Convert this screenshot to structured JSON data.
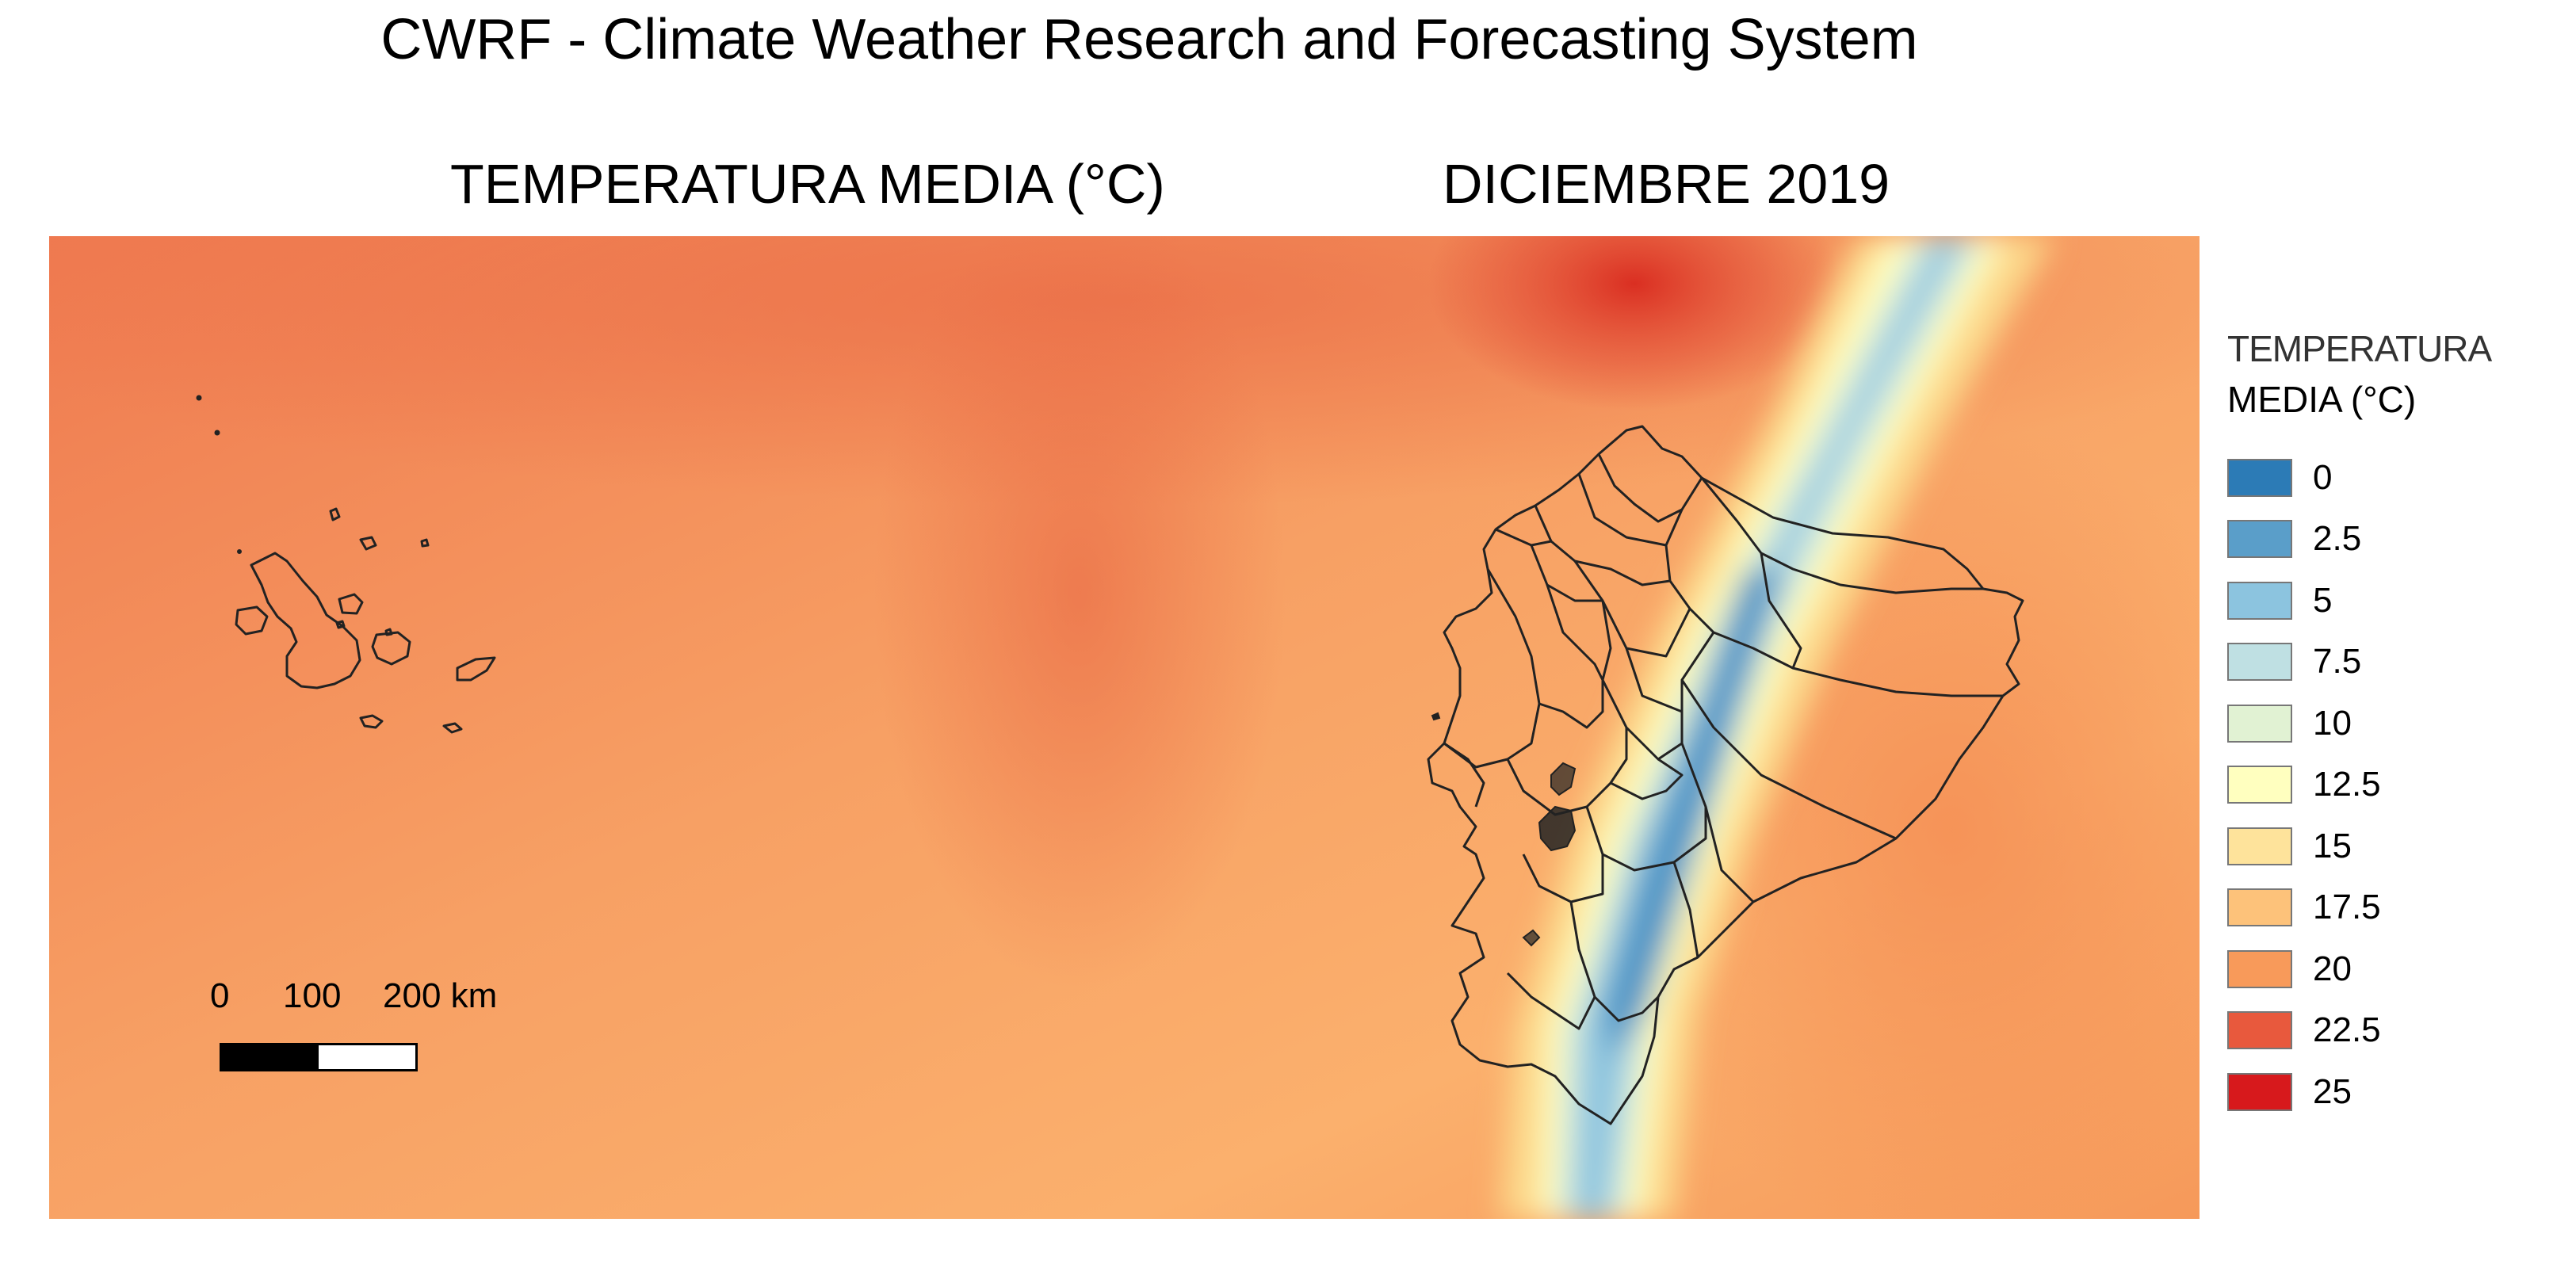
{
  "header": {
    "main_title": "CWRF - Climate Weather Research and Forecasting System",
    "map_title_left": "TEMPERATURA MEDIA (°C)",
    "map_title_right": "DICIEMBRE 2019"
  },
  "scale_bar": {
    "labels": [
      "0",
      "100",
      "200 km"
    ]
  },
  "legend": {
    "title_line1": "TEMPERATURA",
    "title_line2": "MEDIA (°C)",
    "items": [
      {
        "label": "0",
        "color": "#2c7bb6"
      },
      {
        "label": "2.5",
        "color": "#5a9ec9"
      },
      {
        "label": "5",
        "color": "#8cc4df"
      },
      {
        "label": "7.5",
        "color": "#bfe0e3"
      },
      {
        "label": "10",
        "color": "#e1f2d3"
      },
      {
        "label": "12.5",
        "color": "#ffffbf"
      },
      {
        "label": "15",
        "color": "#fee39b"
      },
      {
        "label": "17.5",
        "color": "#fdc27a"
      },
      {
        "label": "20",
        "color": "#f89a5a"
      },
      {
        "label": "22.5",
        "color": "#e8593d"
      },
      {
        "label": "25",
        "color": "#d7191c"
      }
    ]
  }
}
